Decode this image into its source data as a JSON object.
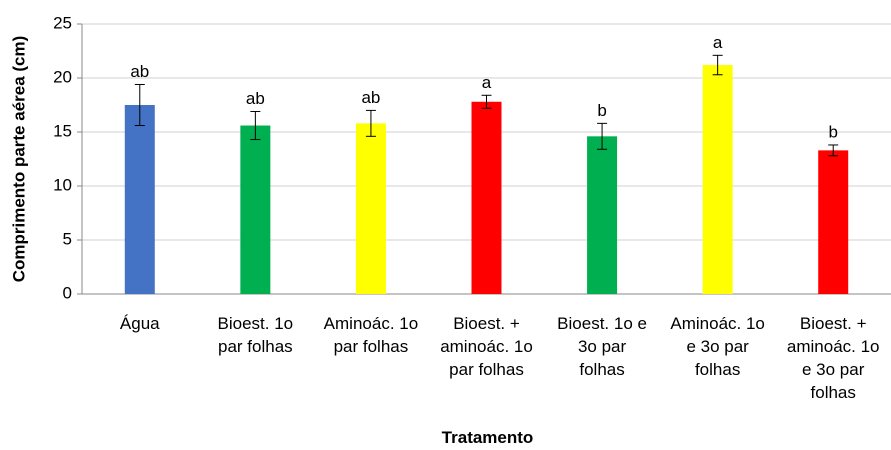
{
  "chart_data": {
    "type": "bar",
    "y_label": "Comprimento parte aérea (cm)",
    "x_label": "Tratamento",
    "categories": [
      "Água",
      "Bioest. 1o\npar folhas",
      "Aminoác. 1o\npar folhas",
      "Bioest. +\naminoác. 1o\npar folhas",
      "Bioest. 1o e\n3o par\nfolhas",
      "Aminoác. 1o\ne 3o par\nfolhas",
      "Bioest. +\naminoác. 1o\ne 3o par\nfolhas"
    ],
    "values": [
      17.5,
      15.6,
      15.8,
      17.8,
      14.6,
      21.2,
      13.3
    ],
    "errors": [
      1.9,
      1.3,
      1.2,
      0.6,
      1.2,
      0.9,
      0.5
    ],
    "annotations": [
      "ab",
      "ab",
      "ab",
      "a",
      "b",
      "a",
      "b"
    ],
    "colors": [
      "#4472c4",
      "#00b050",
      "#ffff00",
      "#ff0000",
      "#00b050",
      "#ffff00",
      "#ff0000"
    ],
    "ylim": [
      0,
      25
    ],
    "yticks": [
      0,
      5,
      10,
      15,
      20,
      25
    ],
    "grid": true
  }
}
